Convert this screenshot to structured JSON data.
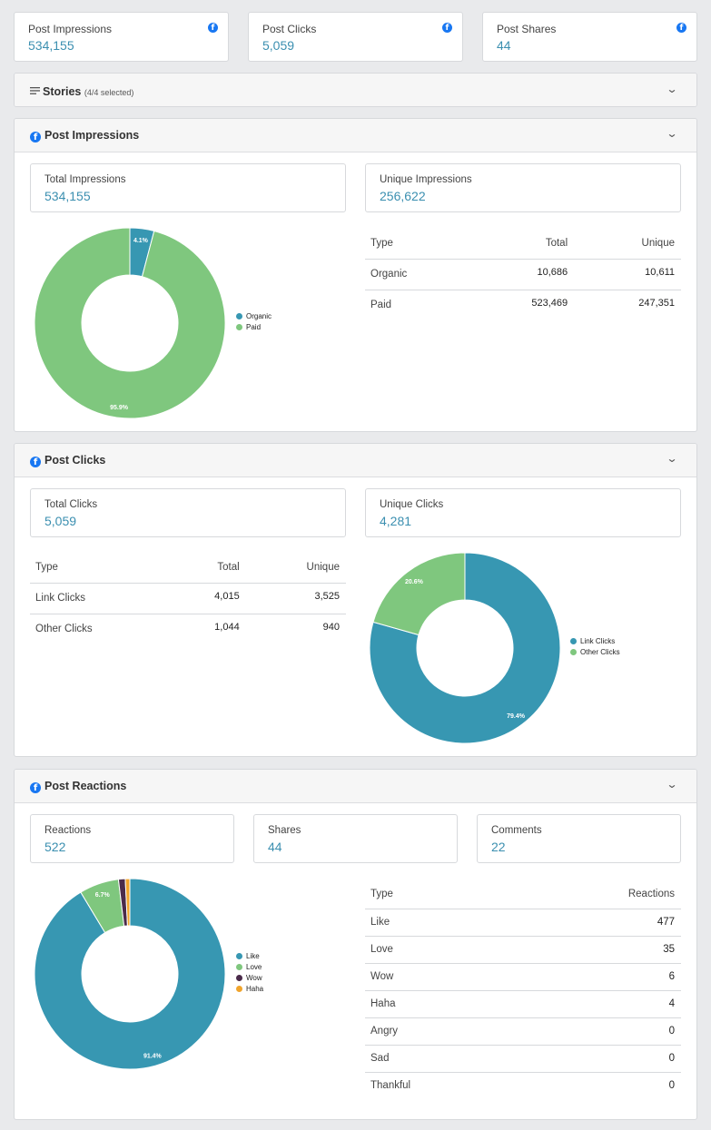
{
  "summary": [
    {
      "label": "Post Impressions",
      "value": "534,155"
    },
    {
      "label": "Post Clicks",
      "value": "5,059"
    },
    {
      "label": "Post Shares",
      "value": "44"
    }
  ],
  "stories": {
    "title": "Stories",
    "count": "(4/4 selected)"
  },
  "impressions": {
    "title": "Post Impressions",
    "metrics": [
      {
        "label": "Total Impressions",
        "value": "534,155"
      },
      {
        "label": "Unique Impressions",
        "value": "256,622"
      }
    ],
    "table": {
      "headers": [
        "Type",
        "Total",
        "Unique"
      ],
      "rows": [
        [
          "Organic",
          "10,686",
          "10,611"
        ],
        [
          "Paid",
          "523,469",
          "247,351"
        ]
      ]
    }
  },
  "clicks": {
    "title": "Post Clicks",
    "metrics": [
      {
        "label": "Total Clicks",
        "value": "5,059"
      },
      {
        "label": "Unique Clicks",
        "value": "4,281"
      }
    ],
    "table": {
      "headers": [
        "Type",
        "Total",
        "Unique"
      ],
      "rows": [
        [
          "Link Clicks",
          "4,015",
          "3,525"
        ],
        [
          "Other Clicks",
          "1,044",
          "940"
        ]
      ]
    }
  },
  "reactions": {
    "title": "Post Reactions",
    "metrics": [
      {
        "label": "Reactions",
        "value": "522"
      },
      {
        "label": "Shares",
        "value": "44"
      },
      {
        "label": "Comments",
        "value": "22"
      }
    ],
    "table": {
      "headers": [
        "Type",
        "Reactions"
      ],
      "rows": [
        [
          "Like",
          "477"
        ],
        [
          "Love",
          "35"
        ],
        [
          "Wow",
          "6"
        ],
        [
          "Haha",
          "4"
        ],
        [
          "Angry",
          "0"
        ],
        [
          "Sad",
          "0"
        ],
        [
          "Thankful",
          "0"
        ]
      ]
    }
  },
  "chart_data": [
    {
      "type": "pie",
      "categories": [
        "Organic",
        "Paid"
      ],
      "values": [
        4.1,
        95.9
      ],
      "labels": [
        "4.1%",
        "95.9%"
      ],
      "colors": [
        "#3797b2",
        "#7fc77e"
      ],
      "legend": "right"
    },
    {
      "type": "pie",
      "categories": [
        "Link Clicks",
        "Other Clicks"
      ],
      "values": [
        79.4,
        20.6
      ],
      "labels": [
        "79.4%",
        "20.6%"
      ],
      "colors": [
        "#3797b2",
        "#7fc77e"
      ],
      "legend": "right"
    },
    {
      "type": "pie",
      "categories": [
        "Like",
        "Love",
        "Wow",
        "Haha"
      ],
      "values": [
        477,
        35,
        6,
        4
      ],
      "labels": [
        "91.4%",
        "6.7%",
        "",
        ""
      ],
      "colors": [
        "#3797b2",
        "#7fc77e",
        "#4a2b4a",
        "#f0a42c"
      ],
      "legend": "right"
    }
  ]
}
